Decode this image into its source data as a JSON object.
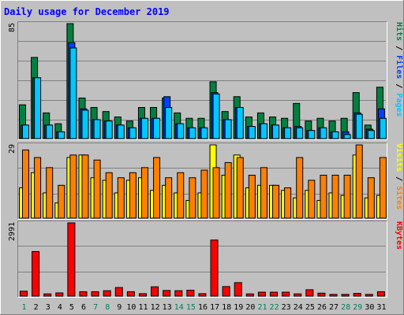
{
  "chart_data": {
    "type": "bar",
    "title": "Daily usage for December 2019",
    "categories": [
      "1",
      "2",
      "3",
      "4",
      "5",
      "6",
      "7",
      "8",
      "9",
      "10",
      "11",
      "12",
      "13",
      "14",
      "15",
      "16",
      "17",
      "18",
      "19",
      "20",
      "21",
      "22",
      "23",
      "24",
      "25",
      "26",
      "27",
      "28",
      "29",
      "30",
      "31"
    ],
    "weekend_days": [
      "1",
      "7",
      "8",
      "14",
      "15",
      "21",
      "22",
      "28",
      "29"
    ],
    "panels": [
      {
        "id": "hits",
        "max_label": "85",
        "ymax": 85,
        "legend": [
          {
            "text": "Pages",
            "color": "#00c8ff"
          },
          {
            "text": "Files",
            "color": "#0040ff"
          },
          {
            "text": "Hits",
            "color": "#008040"
          }
        ],
        "series": [
          {
            "name": "Hits",
            "color": "#008040",
            "values": [
              25,
              60,
              19,
              11,
              85,
              30,
              23,
              20,
              16,
              13,
              23,
              23,
              30,
              19,
              15,
              15,
              42,
              20,
              31,
              16,
              19,
              16,
              15,
              26,
              13,
              15,
              13,
              15,
              34,
              10,
              38
            ]
          },
          {
            "name": "Files",
            "color": "#0040ff",
            "values": [
              10,
              45,
              10,
              5,
              71,
              22,
              14,
              13,
              10,
              8,
              15,
              15,
              31,
              11,
              8,
              8,
              34,
              14,
              23,
              9,
              11,
              10,
              8,
              9,
              6,
              8,
              5,
              5,
              19,
              7,
              22
            ]
          },
          {
            "name": "Pages",
            "color": "#00c8ff",
            "values": [
              10,
              45,
              10,
              5,
              67,
              21,
              14,
              13,
              10,
              8,
              15,
              15,
              23,
              11,
              8,
              8,
              33,
              14,
              23,
              9,
              11,
              10,
              8,
              8,
              6,
              8,
              5,
              3,
              18,
              6,
              15
            ]
          }
        ]
      },
      {
        "id": "visits",
        "max_label": "29",
        "ymax": 29,
        "legend": [
          {
            "text": "Sites",
            "color": "#ff8000"
          },
          {
            "text": "Visits",
            "color": "#ffff00"
          }
        ],
        "series": [
          {
            "name": "Visits",
            "color": "#ffff00",
            "values": [
              12,
              18,
              10,
              6,
              24,
              25,
              16,
              15,
              10,
              15,
              16,
              11,
              13,
              10,
              7,
              10,
              29,
              17,
              25,
              12,
              13,
              13,
              11,
              8,
              11,
              7,
              10,
              9,
              25,
              8,
              9
            ]
          },
          {
            "name": "Sites",
            "color": "#ff8000",
            "values": [
              27,
              24,
              20,
              13,
              25,
              25,
              23,
              18,
              16,
              18,
              20,
              24,
              16,
              18,
              16,
              19,
              20,
              22,
              24,
              17,
              20,
              13,
              12,
              24,
              15,
              17,
              17,
              17,
              29,
              16,
              24
            ]
          }
        ]
      },
      {
        "id": "kbytes",
        "max_label": "2991",
        "ymax": 2991,
        "legend": [
          {
            "text": "KBytes",
            "color": "#ff0000"
          }
        ],
        "series": [
          {
            "name": "KBytes",
            "color": "#ff0000",
            "values": [
              200,
              1820,
              90,
              130,
              2991,
              180,
              180,
              220,
              350,
              180,
              100,
              380,
              230,
              220,
              240,
              100,
              2290,
              390,
              550,
              90,
              160,
              160,
              160,
              90,
              260,
              120,
              70,
              70,
              110,
              70,
              180
            ]
          }
        ]
      }
    ]
  }
}
